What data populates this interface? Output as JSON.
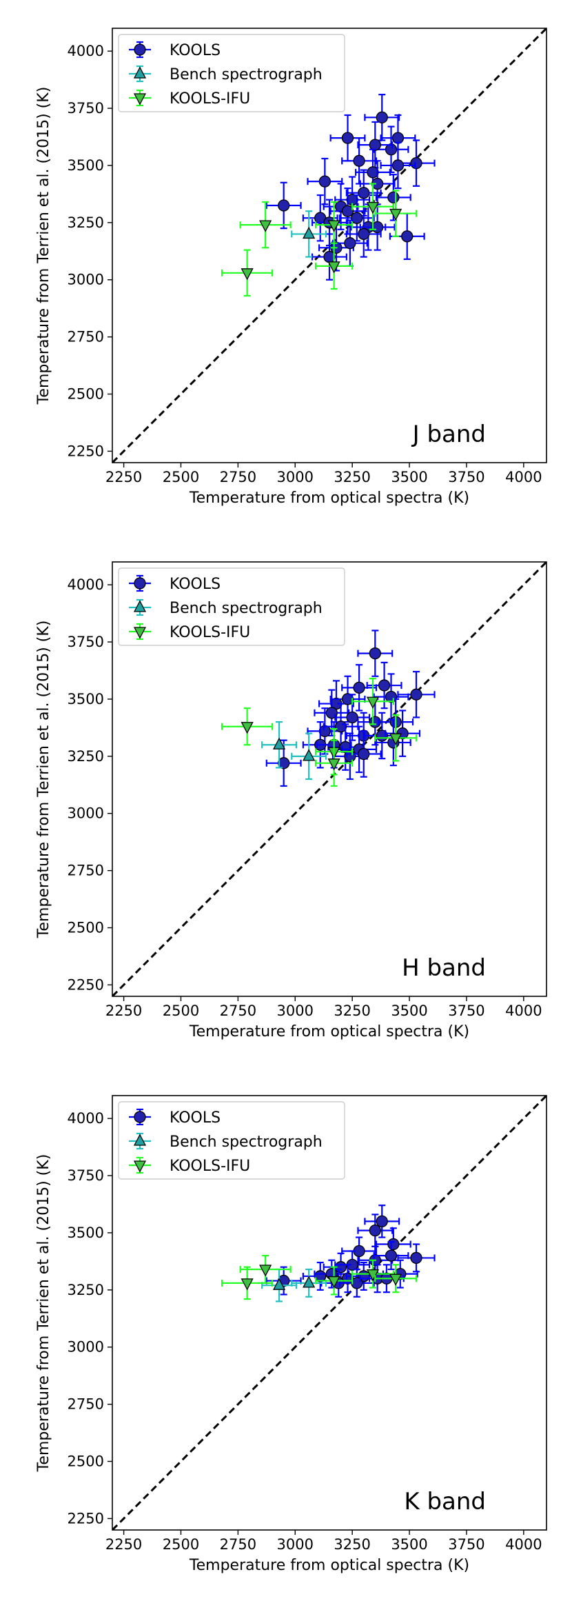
{
  "chart_data": [
    {
      "type": "scatter",
      "panel_label": "J band",
      "xlabel": "Temperature from optical spectra (K)",
      "ylabel": "Temperature from Terrien et al. (2015) (K)",
      "xlim": [
        2200,
        4100
      ],
      "ylim": [
        2200,
        4100
      ],
      "xticks": [
        2250,
        2500,
        2750,
        3000,
        3250,
        3500,
        3750,
        4000
      ],
      "yticks": [
        2250,
        2500,
        2750,
        3000,
        3250,
        3500,
        3750,
        4000
      ],
      "legend": "top-left",
      "grid": false,
      "reference_line": "y = x",
      "series": [
        {
          "name": "KOOLS",
          "color": "#0000ff",
          "face_color": "#2222aa",
          "marker": "circle",
          "points": [
            [
              2950,
              3325,
              75,
              100
            ],
            [
              3130,
              3430,
              75,
              100
            ],
            [
              3230,
              3620,
              75,
              100
            ],
            [
              3380,
              3710,
              75,
              100
            ],
            [
              3450,
              3620,
              75,
              100
            ],
            [
              3420,
              3570,
              75,
              100
            ],
            [
              3350,
              3590,
              75,
              100
            ],
            [
              3530,
              3510,
              80,
              100
            ],
            [
              3280,
              3520,
              75,
              100
            ],
            [
              3450,
              3500,
              75,
              100
            ],
            [
              3340,
              3470,
              75,
              100
            ],
            [
              3360,
              3420,
              75,
              100
            ],
            [
              3300,
              3380,
              75,
              100
            ],
            [
              3430,
              3360,
              75,
              100
            ],
            [
              3200,
              3320,
              75,
              100
            ],
            [
              3250,
              3350,
              75,
              100
            ],
            [
              3110,
              3270,
              75,
              100
            ],
            [
              3150,
              3250,
              75,
              100
            ],
            [
              3230,
              3300,
              75,
              100
            ],
            [
              3270,
              3270,
              75,
              100
            ],
            [
              3320,
              3230,
              75,
              100
            ],
            [
              3360,
              3230,
              75,
              100
            ],
            [
              3490,
              3190,
              75,
              100
            ],
            [
              3180,
              3140,
              75,
              100
            ],
            [
              3240,
              3160,
              75,
              100
            ],
            [
              3300,
              3200,
              75,
              100
            ],
            [
              3150,
              3100,
              75,
              100
            ]
          ]
        },
        {
          "name": "Bench spectrograph",
          "color": "#20c0c0",
          "face_color": "#20a0a0",
          "marker": "triangle-up",
          "points": [
            [
              3060,
              3200,
              75,
              100
            ]
          ]
        },
        {
          "name": "KOOLS-IFU",
          "color": "#20ff20",
          "face_color": "#40c040",
          "marker": "triangle-down",
          "points": [
            [
              2790,
              3030,
              110,
              100
            ],
            [
              2870,
              3240,
              110,
              100
            ],
            [
              3170,
              3240,
              80,
              100
            ],
            [
              3170,
              3060,
              80,
              100
            ],
            [
              3340,
              3320,
              90,
              100
            ],
            [
              3440,
              3290,
              90,
              100
            ]
          ]
        }
      ]
    },
    {
      "type": "scatter",
      "panel_label": "H band",
      "xlabel": "Temperature from optical spectra (K)",
      "ylabel": "Temperature from Terrien et al. (2015) (K)",
      "xlim": [
        2200,
        4100
      ],
      "ylim": [
        2200,
        4100
      ],
      "xticks": [
        2250,
        2500,
        2750,
        3000,
        3250,
        3500,
        3750,
        4000
      ],
      "yticks": [
        2250,
        2500,
        2750,
        3000,
        3250,
        3500,
        3750,
        4000
      ],
      "legend": "top-left",
      "grid": false,
      "reference_line": "y = x",
      "series": [
        {
          "name": "KOOLS",
          "color": "#0000ff",
          "face_color": "#2222aa",
          "marker": "circle",
          "points": [
            [
              2950,
              3220,
              75,
              100
            ],
            [
              3350,
              3700,
              75,
              100
            ],
            [
              3530,
              3520,
              80,
              100
            ],
            [
              3280,
              3550,
              75,
              100
            ],
            [
              3390,
              3560,
              75,
              100
            ],
            [
              3180,
              3480,
              75,
              100
            ],
            [
              3230,
              3500,
              75,
              100
            ],
            [
              3420,
              3510,
              75,
              100
            ],
            [
              3160,
              3440,
              75,
              100
            ],
            [
              3250,
              3420,
              75,
              100
            ],
            [
              3350,
              3400,
              75,
              100
            ],
            [
              3440,
              3400,
              75,
              100
            ],
            [
              3130,
              3360,
              75,
              100
            ],
            [
              3200,
              3380,
              75,
              100
            ],
            [
              3300,
              3340,
              75,
              100
            ],
            [
              3380,
              3340,
              75,
              100
            ],
            [
              3470,
              3350,
              75,
              100
            ],
            [
              3110,
              3300,
              75,
              100
            ],
            [
              3170,
              3300,
              75,
              100
            ],
            [
              3220,
              3290,
              75,
              100
            ],
            [
              3280,
              3280,
              75,
              100
            ],
            [
              3430,
              3310,
              75,
              100
            ],
            [
              3240,
              3250,
              75,
              100
            ],
            [
              3300,
              3260,
              75,
              100
            ]
          ]
        },
        {
          "name": "Bench spectrograph",
          "color": "#20c0c0",
          "face_color": "#20a0a0",
          "marker": "triangle-up",
          "points": [
            [
              2930,
              3300,
              75,
              100
            ],
            [
              3060,
              3250,
              75,
              100
            ]
          ]
        },
        {
          "name": "KOOLS-IFU",
          "color": "#20ff20",
          "face_color": "#40c040",
          "marker": "triangle-down",
          "points": [
            [
              2790,
              3380,
              110,
              80
            ],
            [
              3170,
              3270,
              80,
              100
            ],
            [
              3170,
              3220,
              80,
              100
            ],
            [
              3340,
              3490,
              90,
              100
            ],
            [
              3440,
              3330,
              90,
              100
            ]
          ]
        }
      ]
    },
    {
      "type": "scatter",
      "panel_label": "K band",
      "xlabel": "Temperature from optical spectra (K)",
      "ylabel": "Temperature from Terrien et al. (2015) (K)",
      "xlim": [
        2200,
        4100
      ],
      "ylim": [
        2200,
        4100
      ],
      "xticks": [
        2250,
        2500,
        2750,
        3000,
        3250,
        3500,
        3750,
        4000
      ],
      "yticks": [
        2250,
        2500,
        2750,
        3000,
        3250,
        3500,
        3750,
        4000
      ],
      "legend": "top-left",
      "grid": false,
      "reference_line": "y = x",
      "series": [
        {
          "name": "KOOLS",
          "color": "#0000ff",
          "face_color": "#2222aa",
          "marker": "circle",
          "points": [
            [
              2950,
              3290,
              75,
              60
            ],
            [
              3380,
              3550,
              75,
              70
            ],
            [
              3350,
              3510,
              75,
              70
            ],
            [
              3430,
              3450,
              75,
              70
            ],
            [
              3280,
              3420,
              75,
              60
            ],
            [
              3350,
              3380,
              75,
              60
            ],
            [
              3530,
              3390,
              80,
              60
            ],
            [
              3420,
              3400,
              75,
              60
            ],
            [
              3200,
              3350,
              75,
              60
            ],
            [
              3250,
              3360,
              75,
              60
            ],
            [
              3110,
              3310,
              75,
              60
            ],
            [
              3160,
              3320,
              75,
              60
            ],
            [
              3230,
              3300,
              75,
              60
            ],
            [
              3300,
              3310,
              75,
              60
            ],
            [
              3460,
              3320,
              75,
              60
            ],
            [
              3190,
              3280,
              75,
              60
            ],
            [
              3270,
              3280,
              75,
              60
            ],
            [
              3360,
              3300,
              75,
              60
            ],
            [
              3400,
              3300,
              75,
              60
            ]
          ]
        },
        {
          "name": "Bench spectrograph",
          "color": "#20c0c0",
          "face_color": "#20a0a0",
          "marker": "triangle-up",
          "points": [
            [
              2930,
              3270,
              75,
              70
            ],
            [
              3060,
              3280,
              75,
              60
            ]
          ]
        },
        {
          "name": "KOOLS-IFU",
          "color": "#20ff20",
          "face_color": "#40c040",
          "marker": "triangle-down",
          "points": [
            [
              2790,
              3280,
              110,
              70
            ],
            [
              2870,
              3340,
              110,
              60
            ],
            [
              3170,
              3290,
              80,
              60
            ],
            [
              3340,
              3320,
              90,
              60
            ],
            [
              3440,
              3300,
              90,
              60
            ]
          ]
        }
      ]
    }
  ]
}
